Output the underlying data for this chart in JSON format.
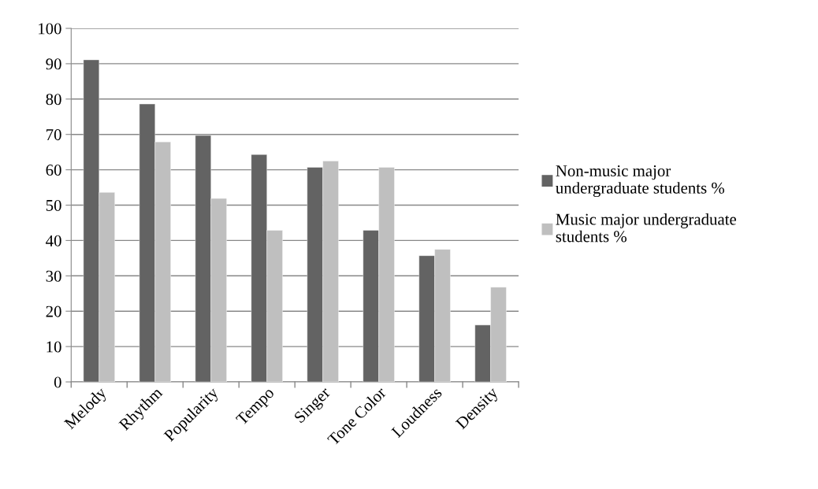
{
  "chart_data": {
    "type": "bar",
    "categories": [
      "Melody",
      "Rhythm",
      "Popularity",
      "Tempo",
      "Singer",
      "Tone Color",
      "Loudness",
      "Density"
    ],
    "series": [
      {
        "name": "Non-music major undergraduate students %",
        "color": "#636363",
        "values": [
          91.1,
          78.6,
          69.7,
          64.3,
          60.7,
          42.9,
          35.7,
          16.1
        ]
      },
      {
        "name": "Music major undergraduate students %",
        "color": "#bfbfbf",
        "values": [
          53.6,
          67.9,
          51.9,
          42.9,
          62.5,
          60.7,
          37.5,
          26.8
        ]
      }
    ],
    "ylim": [
      0,
      100
    ],
    "yticks": [
      0,
      10,
      20,
      30,
      40,
      50,
      60,
      70,
      80,
      90,
      100
    ],
    "grid": "y",
    "legend": "right"
  }
}
